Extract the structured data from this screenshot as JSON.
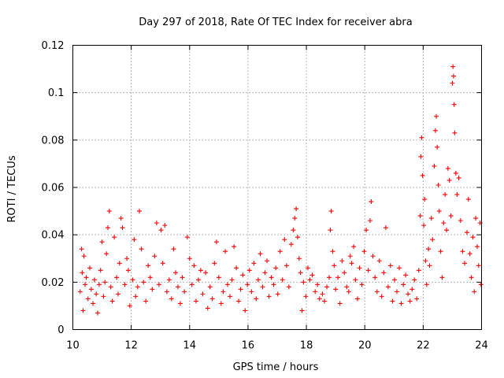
{
  "chart_data": {
    "type": "scatter",
    "title": "Day 297 of 2018, Rate Of TEC Index for receiver abra",
    "xlabel": "GPS time / hours",
    "ylabel": "ROTI / TECUs",
    "xlim": [
      10,
      24
    ],
    "ylim": [
      0,
      0.12
    ],
    "xticks": [
      10,
      12,
      14,
      16,
      18,
      20,
      22,
      24
    ],
    "xtick_labels": [
      "10",
      "12",
      "14",
      "16",
      "18",
      "20",
      "22",
      "24"
    ],
    "yticks": [
      0,
      0.02,
      0.04,
      0.06,
      0.08,
      0.1,
      0.12
    ],
    "ytick_labels": [
      "0",
      "0.02",
      "0.04",
      "0.06",
      "0.08",
      "0.1",
      "0.12"
    ],
    "grid": true,
    "marker": "+",
    "series_color": "#ff0000",
    "series": [
      {
        "name": "ROTI",
        "points": [
          [
            10.25,
            0.016
          ],
          [
            10.3,
            0.034
          ],
          [
            10.32,
            0.024
          ],
          [
            10.35,
            0.008
          ],
          [
            10.38,
            0.031
          ],
          [
            10.42,
            0.019
          ],
          [
            10.46,
            0.022
          ],
          [
            10.52,
            0.013
          ],
          [
            10.58,
            0.026
          ],
          [
            10.63,
            0.017
          ],
          [
            10.69,
            0.011
          ],
          [
            10.74,
            0.021
          ],
          [
            10.8,
            0.015
          ],
          [
            10.85,
            0.007
          ],
          [
            10.9,
            0.019
          ],
          [
            10.95,
            0.025
          ],
          [
            11.0,
            0.037
          ],
          [
            11.05,
            0.014
          ],
          [
            11.1,
            0.02
          ],
          [
            11.15,
            0.032
          ],
          [
            11.2,
            0.043
          ],
          [
            11.25,
            0.05
          ],
          [
            11.3,
            0.018
          ],
          [
            11.35,
            0.012
          ],
          [
            11.42,
            0.039
          ],
          [
            11.5,
            0.022
          ],
          [
            11.55,
            0.015
          ],
          [
            11.6,
            0.028
          ],
          [
            11.65,
            0.047
          ],
          [
            11.7,
            0.043
          ],
          [
            11.78,
            0.019
          ],
          [
            11.85,
            0.03
          ],
          [
            11.9,
            0.025
          ],
          [
            11.95,
            0.01
          ],
          [
            12.05,
            0.021
          ],
          [
            12.1,
            0.038
          ],
          [
            12.15,
            0.014
          ],
          [
            12.22,
            0.018
          ],
          [
            12.28,
            0.05
          ],
          [
            12.35,
            0.034
          ],
          [
            12.42,
            0.02
          ],
          [
            12.5,
            0.012
          ],
          [
            12.58,
            0.027
          ],
          [
            12.65,
            0.022
          ],
          [
            12.72,
            0.017
          ],
          [
            12.8,
            0.031
          ],
          [
            12.87,
            0.045
          ],
          [
            12.95,
            0.019
          ],
          [
            13.02,
            0.042
          ],
          [
            13.08,
            0.028
          ],
          [
            13.15,
            0.044
          ],
          [
            13.22,
            0.016
          ],
          [
            13.3,
            0.021
          ],
          [
            13.38,
            0.013
          ],
          [
            13.45,
            0.034
          ],
          [
            13.52,
            0.024
          ],
          [
            13.6,
            0.018
          ],
          [
            13.68,
            0.011
          ],
          [
            13.75,
            0.022
          ],
          [
            13.82,
            0.016
          ],
          [
            13.92,
            0.039
          ],
          [
            14.0,
            0.03
          ],
          [
            14.08,
            0.019
          ],
          [
            14.15,
            0.027
          ],
          [
            14.22,
            0.012
          ],
          [
            14.3,
            0.021
          ],
          [
            14.38,
            0.025
          ],
          [
            14.45,
            0.015
          ],
          [
            14.55,
            0.024
          ],
          [
            14.62,
            0.009
          ],
          [
            14.7,
            0.018
          ],
          [
            14.78,
            0.013
          ],
          [
            14.85,
            0.028
          ],
          [
            14.92,
            0.037
          ],
          [
            15.0,
            0.022
          ],
          [
            15.08,
            0.011
          ],
          [
            15.15,
            0.016
          ],
          [
            15.22,
            0.033
          ],
          [
            15.3,
            0.019
          ],
          [
            15.38,
            0.014
          ],
          [
            15.45,
            0.021
          ],
          [
            15.52,
            0.035
          ],
          [
            15.6,
            0.026
          ],
          [
            15.68,
            0.012
          ],
          [
            15.75,
            0.017
          ],
          [
            15.82,
            0.023
          ],
          [
            15.9,
            0.008
          ],
          [
            15.98,
            0.019
          ],
          [
            16.05,
            0.025
          ],
          [
            16.12,
            0.016
          ],
          [
            16.2,
            0.028
          ],
          [
            16.28,
            0.013
          ],
          [
            16.35,
            0.021
          ],
          [
            16.42,
            0.032
          ],
          [
            16.5,
            0.018
          ],
          [
            16.58,
            0.024
          ],
          [
            16.65,
            0.029
          ],
          [
            16.72,
            0.014
          ],
          [
            16.8,
            0.022
          ],
          [
            16.88,
            0.019
          ],
          [
            16.95,
            0.026
          ],
          [
            17.02,
            0.015
          ],
          [
            17.1,
            0.033
          ],
          [
            17.18,
            0.021
          ],
          [
            17.25,
            0.038
          ],
          [
            17.32,
            0.027
          ],
          [
            17.4,
            0.018
          ],
          [
            17.48,
            0.036
          ],
          [
            17.55,
            0.042
          ],
          [
            17.6,
            0.047
          ],
          [
            17.65,
            0.051
          ],
          [
            17.7,
            0.039
          ],
          [
            17.75,
            0.03
          ],
          [
            17.8,
            0.024
          ],
          [
            17.85,
            0.008
          ],
          [
            17.9,
            0.02
          ],
          [
            17.98,
            0.014
          ],
          [
            18.05,
            0.026
          ],
          [
            18.12,
            0.021
          ],
          [
            18.2,
            0.023
          ],
          [
            18.3,
            0.016
          ],
          [
            18.38,
            0.019
          ],
          [
            18.45,
            0.013
          ],
          [
            18.55,
            0.015
          ],
          [
            18.62,
            0.012
          ],
          [
            18.7,
            0.018
          ],
          [
            18.78,
            0.022
          ],
          [
            18.82,
            0.042
          ],
          [
            18.85,
            0.05
          ],
          [
            18.9,
            0.033
          ],
          [
            18.95,
            0.027
          ],
          [
            19.0,
            0.017
          ],
          [
            19.08,
            0.022
          ],
          [
            19.15,
            0.011
          ],
          [
            19.22,
            0.029
          ],
          [
            19.3,
            0.024
          ],
          [
            19.38,
            0.018
          ],
          [
            19.45,
            0.016
          ],
          [
            19.5,
            0.031
          ],
          [
            19.55,
            0.028
          ],
          [
            19.62,
            0.035
          ],
          [
            19.68,
            0.021
          ],
          [
            19.75,
            0.013
          ],
          [
            19.82,
            0.026
          ],
          [
            19.9,
            0.019
          ],
          [
            19.98,
            0.033
          ],
          [
            20.05,
            0.042
          ],
          [
            20.12,
            0.025
          ],
          [
            20.18,
            0.046
          ],
          [
            20.22,
            0.054
          ],
          [
            20.28,
            0.031
          ],
          [
            20.35,
            0.022
          ],
          [
            20.42,
            0.016
          ],
          [
            20.5,
            0.029
          ],
          [
            20.58,
            0.014
          ],
          [
            20.65,
            0.024
          ],
          [
            20.72,
            0.043
          ],
          [
            20.8,
            0.018
          ],
          [
            20.88,
            0.027
          ],
          [
            20.95,
            0.012
          ],
          [
            21.02,
            0.021
          ],
          [
            21.1,
            0.016
          ],
          [
            21.18,
            0.026
          ],
          [
            21.25,
            0.011
          ],
          [
            21.32,
            0.019
          ],
          [
            21.4,
            0.023
          ],
          [
            21.48,
            0.015
          ],
          [
            21.55,
            0.012
          ],
          [
            21.62,
            0.017
          ],
          [
            21.7,
            0.021
          ],
          [
            21.78,
            0.013
          ],
          [
            21.85,
            0.025
          ],
          [
            21.9,
            0.048
          ],
          [
            21.92,
            0.073
          ],
          [
            21.95,
            0.081
          ],
          [
            21.98,
            0.065
          ],
          [
            22.02,
            0.044
          ],
          [
            22.05,
            0.055
          ],
          [
            22.08,
            0.029
          ],
          [
            22.12,
            0.019
          ],
          [
            22.18,
            0.034
          ],
          [
            22.22,
            0.027
          ],
          [
            22.28,
            0.047
          ],
          [
            22.32,
            0.038
          ],
          [
            22.38,
            0.069
          ],
          [
            22.42,
            0.084
          ],
          [
            22.45,
            0.09
          ],
          [
            22.48,
            0.077
          ],
          [
            22.52,
            0.061
          ],
          [
            22.55,
            0.05
          ],
          [
            22.6,
            0.033
          ],
          [
            22.65,
            0.022
          ],
          [
            22.7,
            0.045
          ],
          [
            22.75,
            0.057
          ],
          [
            22.8,
            0.042
          ],
          [
            22.85,
            0.068
          ],
          [
            22.9,
            0.063
          ],
          [
            22.95,
            0.048
          ],
          [
            23.0,
            0.104
          ],
          [
            23.02,
            0.111
          ],
          [
            23.04,
            0.107
          ],
          [
            23.06,
            0.095
          ],
          [
            23.08,
            0.083
          ],
          [
            23.12,
            0.066
          ],
          [
            23.16,
            0.057
          ],
          [
            23.22,
            0.064
          ],
          [
            23.28,
            0.046
          ],
          [
            23.35,
            0.033
          ],
          [
            23.42,
            0.028
          ],
          [
            23.5,
            0.041
          ],
          [
            23.55,
            0.055
          ],
          [
            23.6,
            0.032
          ],
          [
            23.65,
            0.022
          ],
          [
            23.7,
            0.039
          ],
          [
            23.75,
            0.016
          ],
          [
            23.8,
            0.047
          ],
          [
            23.85,
            0.035
          ],
          [
            23.9,
            0.027
          ],
          [
            23.95,
            0.045
          ],
          [
            23.98,
            0.019
          ]
        ]
      }
    ]
  }
}
